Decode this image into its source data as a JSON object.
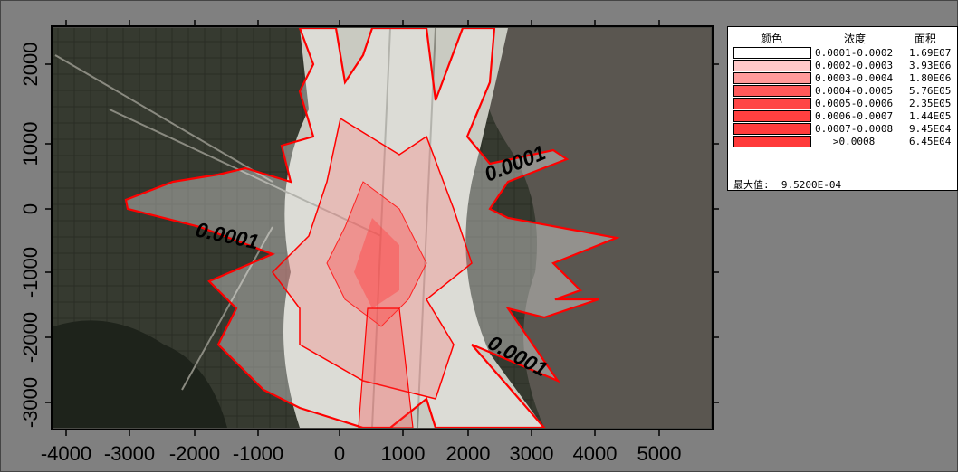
{
  "map": {
    "x_ticks": [
      "-4000",
      "-3000",
      "-2000",
      "-1000",
      "0",
      "1000",
      "2000",
      "3000",
      "4000",
      "5000"
    ],
    "y_ticks": [
      "2000",
      "1000",
      "0",
      "-1000",
      "-2000",
      "-3000"
    ],
    "contour_labels": [
      "0.0001",
      "0.0001",
      "0.0001"
    ],
    "colors": {
      "land": "#3a3d33",
      "reclaimed": "#cfd0c8",
      "sea": "#6e6a62",
      "outline": "#ff0000",
      "fill": "#ff3c3c"
    }
  },
  "legend": {
    "headers": {
      "color": "颜色",
      "concentration": "浓度",
      "area": "面积"
    },
    "rows": [
      {
        "range": "0.0001-0.0002",
        "area": "1.69E07",
        "color": "#ffffff"
      },
      {
        "range": "0.0002-0.0003",
        "area": "3.93E06",
        "color": "#ffc8c8"
      },
      {
        "range": "0.0003-0.0004",
        "area": "1.80E06",
        "color": "#ff9a9a"
      },
      {
        "range": "0.0004-0.0005",
        "area": "5.76E05",
        "color": "#ff5a5a"
      },
      {
        "range": "0.0005-0.0006",
        "area": "2.35E05",
        "color": "#ff4646"
      },
      {
        "range": "0.0006-0.0007",
        "area": "1.44E05",
        "color": "#ff4040"
      },
      {
        "range": "0.0007-0.0008",
        "area": "9.45E04",
        "color": "#ff3c3c"
      },
      {
        "range": "   >0.0008",
        "area": "6.45E04",
        "color": "#ff3a3a"
      }
    ],
    "max_label": "最大值:",
    "max_value": "9.5200E-04"
  }
}
